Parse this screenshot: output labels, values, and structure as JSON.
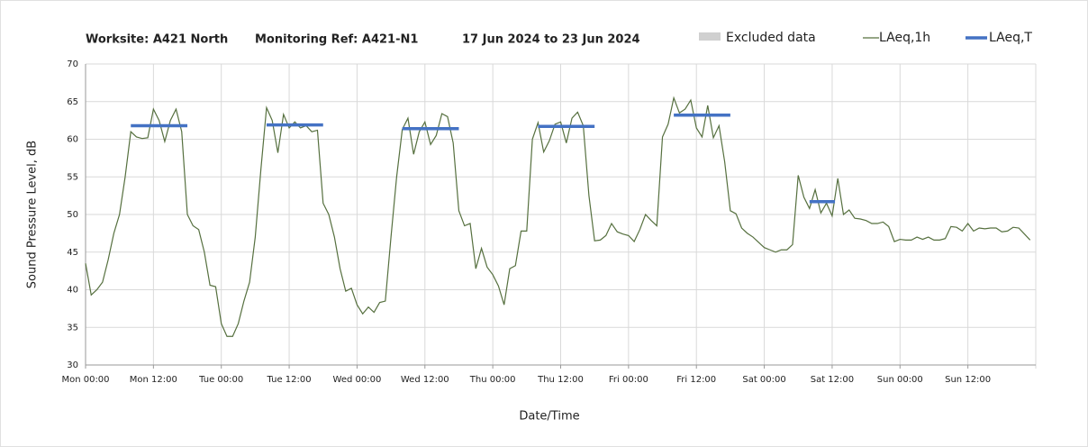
{
  "chart_data": {
    "type": "line",
    "title": [
      "Worksite: A421 North",
      "Monitoring Ref: A421-N1",
      "17 Jun 2024 to 23 Jun 2024"
    ],
    "xlabel": "Date/Time",
    "ylabel": "Sound Pressure Level, dB",
    "xlim": [
      0,
      168
    ],
    "ylim": [
      30,
      70
    ],
    "yticks": [
      30,
      35,
      40,
      45,
      50,
      55,
      60,
      65,
      70
    ],
    "xticks": [
      {
        "value": 0,
        "label": "Mon 00:00"
      },
      {
        "value": 12,
        "label": "Mon 12:00"
      },
      {
        "value": 24,
        "label": "Tue 00:00"
      },
      {
        "value": 36,
        "label": "Tue 12:00"
      },
      {
        "value": 48,
        "label": "Wed 00:00"
      },
      {
        "value": 60,
        "label": "Wed 12:00"
      },
      {
        "value": 72,
        "label": "Thu 00:00"
      },
      {
        "value": 84,
        "label": "Thu 12:00"
      },
      {
        "value": 96,
        "label": "Fri 00:00"
      },
      {
        "value": 108,
        "label": "Fri 12:00"
      },
      {
        "value": 120,
        "label": "Sat 00:00"
      },
      {
        "value": 132,
        "label": "Sat 12:00"
      },
      {
        "value": 144,
        "label": "Sun 00:00"
      },
      {
        "value": 156,
        "label": "Sun 12:00"
      }
    ],
    "grid": true,
    "excluded": {
      "name": "Excluded data",
      "color": "#d0d0d0"
    },
    "series": [
      {
        "name": "LAeq,1h",
        "color": "#56703f",
        "x": [
          0,
          1,
          2,
          3,
          4,
          5,
          6,
          7,
          8,
          9,
          10,
          11,
          12,
          13,
          14,
          15,
          16,
          17,
          18,
          19,
          20,
          21,
          22,
          23,
          24,
          25,
          26,
          27,
          28,
          29,
          30,
          31,
          32,
          33,
          34,
          35,
          36,
          37,
          38,
          39,
          40,
          41,
          42,
          43,
          44,
          45,
          46,
          47,
          48,
          49,
          50,
          51,
          52,
          53,
          54,
          55,
          56,
          57,
          58,
          59,
          60,
          61,
          62,
          63,
          64,
          65,
          66,
          67,
          68,
          69,
          70,
          71,
          72,
          73,
          74,
          75,
          76,
          77,
          78,
          79,
          80,
          81,
          82,
          83,
          84,
          85,
          86,
          87,
          88,
          89,
          90,
          91,
          92,
          93,
          94,
          95,
          96,
          97,
          98,
          99,
          100,
          101,
          102,
          103,
          104,
          105,
          106,
          107,
          108,
          109,
          110,
          111,
          112,
          113,
          114,
          115,
          116,
          117,
          118,
          119,
          120,
          121,
          122,
          123,
          124,
          125,
          126,
          127,
          128,
          129,
          130,
          131,
          132,
          133,
          134,
          135,
          136,
          137,
          138,
          139,
          140,
          141,
          142,
          143,
          144,
          145,
          146,
          147,
          148,
          149,
          150,
          151,
          152,
          153,
          154,
          155,
          156,
          157,
          158,
          159,
          160,
          161,
          162,
          163,
          164,
          165,
          166,
          167
        ],
        "values": [
          43.5,
          39.3,
          40,
          41,
          44,
          47.5,
          50,
          55,
          61,
          60.3,
          60.1,
          60.2,
          64,
          62.5,
          59.7,
          62.5,
          64,
          61,
          50,
          48.5,
          48,
          45,
          40.6,
          40.4,
          35.5,
          33.8,
          33.8,
          35.5,
          38.5,
          41,
          47,
          56,
          64.2,
          62.5,
          58.2,
          63.3,
          61.5,
          62.3,
          61.5,
          61.8,
          61,
          61.2,
          51.5,
          50,
          47,
          42.8,
          39.8,
          40.2,
          38,
          36.8,
          37.7,
          37,
          38.3,
          38.5,
          47,
          55,
          61.3,
          62.8,
          58,
          61,
          62.3,
          59.3,
          60.5,
          63.4,
          63,
          59.5,
          50.5,
          48.5,
          48.8,
          42.8,
          45.5,
          43,
          42,
          40.5,
          38,
          42.8,
          43.2,
          47.8,
          47.8,
          60,
          62.2,
          58.3,
          59.8,
          62,
          62.3,
          59.5,
          62.8,
          63.6,
          61.8,
          52.5,
          46.5,
          46.6,
          47.2,
          48.8,
          47.7,
          47.4,
          47.2,
          46.4,
          48,
          50,
          49.2,
          48.5,
          60.3,
          62,
          65.5,
          63.5,
          64,
          65.2,
          61.5,
          60.3,
          64.5,
          60.2,
          61.8,
          57,
          50.5,
          50.1,
          48.2,
          47.5,
          47,
          46.3,
          45.6,
          45.3,
          45,
          45.3,
          45.3,
          46,
          55.2,
          52.3,
          50.8,
          53.3,
          50.2,
          51.5,
          49.8,
          54.8,
          50,
          50.6,
          49.5,
          49.4,
          49.2,
          48.8,
          48.8,
          49,
          48.4,
          46.4,
          46.7,
          46.6,
          46.6,
          47,
          46.7,
          47,
          46.6,
          46.6,
          46.8,
          48.4,
          48.3,
          47.8,
          48.8,
          47.8,
          48.2,
          48.1,
          48.2,
          48.2,
          47.7,
          47.8,
          48.3,
          48.2,
          47.4,
          46.6
        ]
      },
      {
        "name": "LAeq,T",
        "color": "#4472c4",
        "segments": [
          {
            "x": [
              8,
              18
            ],
            "value": 61.8
          },
          {
            "x": [
              32,
              42
            ],
            "value": 61.9
          },
          {
            "x": [
              56,
              66
            ],
            "value": 61.4
          },
          {
            "x": [
              80,
              90
            ],
            "value": 61.7
          },
          {
            "x": [
              104,
              114
            ],
            "value": 63.2
          },
          {
            "x": [
              128,
              132.5
            ],
            "value": 51.7
          }
        ]
      }
    ]
  }
}
